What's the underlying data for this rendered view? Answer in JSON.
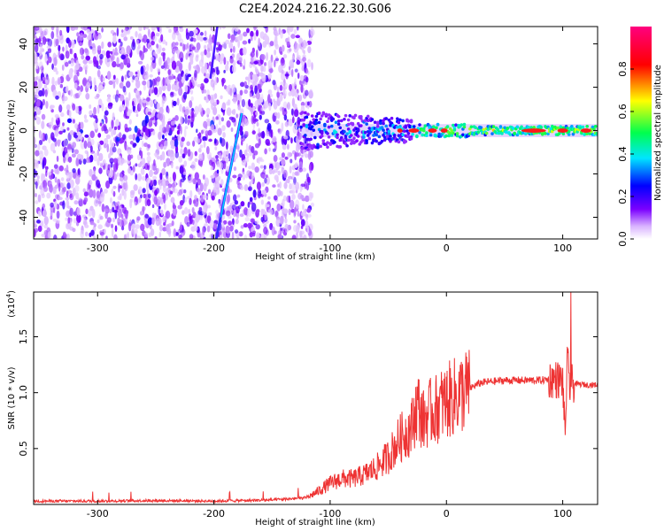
{
  "chart_data": [
    {
      "type": "heatmap",
      "title": "C2E4.2024.216.22.30.G06",
      "xlabel": "Height of straight line (km)",
      "ylabel": "Frequency (Hz)",
      "xlim": [
        -355,
        130
      ],
      "ylim": [
        -50,
        48
      ],
      "xticks": [
        -300,
        -200,
        -100,
        0,
        100
      ],
      "yticks": [
        -40,
        -20,
        0,
        20,
        40
      ],
      "colorbar": {
        "label": "Normalized spectral amplitude",
        "range": [
          0.0,
          1.0
        ],
        "ticks": [
          0.0,
          0.2,
          0.4,
          0.6,
          0.8
        ],
        "colormap": [
          "#ffffff",
          "#7b00ff",
          "#0000ff",
          "#00e5ff",
          "#00ff4d",
          "#ffff00",
          "#ff0000",
          "#ff007f"
        ]
      },
      "features": {
        "noise_region_x": [
          -355,
          -125
        ],
        "signal_band_freq_hz": 0,
        "signal_band_x": [
          -125,
          130
        ],
        "diagonal_line": {
          "from": [
            -198,
            -50
          ],
          "to": [
            -176,
            8
          ]
        }
      }
    },
    {
      "type": "line",
      "xlabel": "Height of straight line (km)",
      "ylabel": "SNR (10 * v/v)",
      "y_multiplier_label": "(x10",
      "y_multiplier_exp": "4",
      "xlim": [
        -355,
        130
      ],
      "ylim": [
        0,
        19000
      ],
      "xticks": [
        -300,
        -200,
        -100,
        0,
        100
      ],
      "yticks": [
        5000,
        10000,
        15000
      ],
      "ytick_labels": [
        "0.5",
        "1.0",
        "1.5"
      ],
      "color": "#ee3333",
      "series": [
        {
          "x": [
            -355,
            -300,
            -250,
            -200,
            -150,
            -120,
            -110,
            -100,
            -90,
            -80,
            -70,
            -60,
            -50,
            -40,
            -30,
            -25,
            -20,
            -15,
            -10,
            -5,
            0,
            10,
            20,
            30,
            40,
            50,
            60,
            70,
            80,
            90,
            95,
            100,
            102,
            104,
            106,
            108,
            110,
            120,
            130
          ],
          "values": [
            300,
            300,
            350,
            300,
            400,
            600,
            1200,
            1900,
            2300,
            2300,
            2700,
            3300,
            4300,
            5900,
            6900,
            9000,
            7500,
            8200,
            8400,
            8900,
            9200,
            9800,
            10400,
            10900,
            11000,
            11100,
            11100,
            11100,
            11100,
            11200,
            11200,
            11000,
            6000,
            13000,
            10500,
            10800,
            10800,
            10700,
            10700
          ]
        }
      ]
    }
  ]
}
